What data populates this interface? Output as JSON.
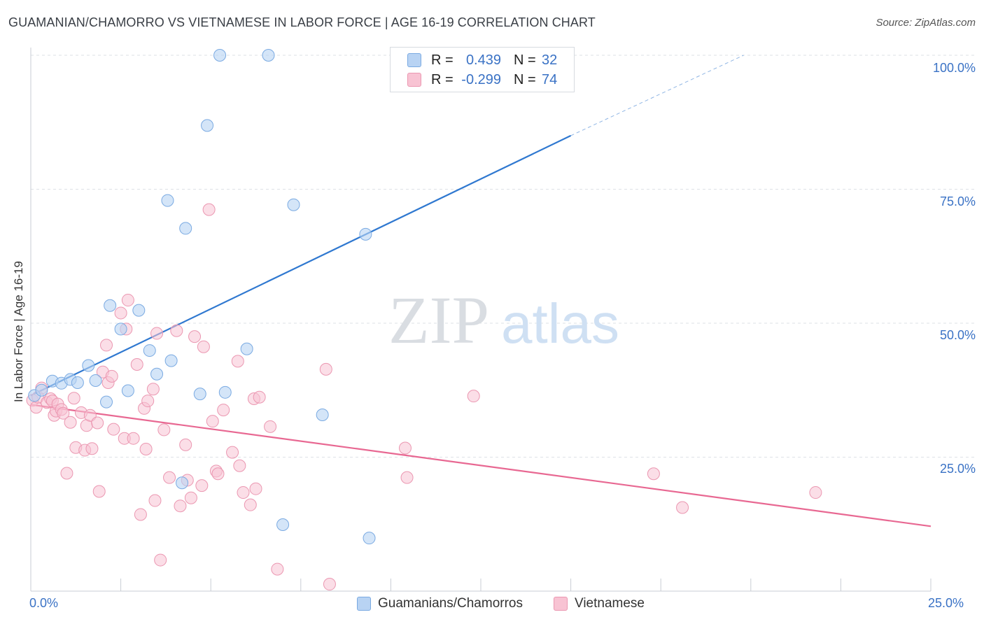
{
  "title": "GUAMANIAN/CHAMORRO VS VIETNAMESE IN LABOR FORCE | AGE 16-19 CORRELATION CHART",
  "source": "Source: ZipAtlas.com",
  "colors": {
    "blue_fill": "#b8d3f3",
    "blue_stroke": "#7aaae2",
    "blue_line": "#2f78d0",
    "pink_fill": "#f8c3d3",
    "pink_stroke": "#eb97b1",
    "pink_line": "#e86892",
    "axis_text": "#3a72c5",
    "grid": "#dde1e6"
  },
  "legend": {
    "rows": [
      {
        "r_label": "R =",
        "r_value": "0.439",
        "n_label": "N =",
        "n_value": "32"
      },
      {
        "r_label": "R =",
        "r_value": "-0.299",
        "n_label": "N =",
        "n_value": "74"
      }
    ]
  },
  "bottom_legend": [
    "Guamanians/Chamorros",
    "Vietnamese"
  ],
  "watermark": {
    "zip": "ZIP",
    "atlas": "atlas"
  },
  "chart_data": {
    "type": "scatter",
    "title": "GUAMANIAN/CHAMORRO VS VIETNAMESE IN LABOR FORCE | AGE 16-19 CORRELATION CHART",
    "xlabel": "",
    "ylabel": "In Labor Force | Age 16-19",
    "xlim": [
      0,
      25
    ],
    "ylim": [
      0,
      100
    ],
    "x_ticks": [
      "0.0%",
      "25.0%"
    ],
    "y_ticks": [
      "100.0%",
      "75.0%",
      "50.0%",
      "25.0%"
    ],
    "y_tick_values": [
      100,
      75,
      50,
      25
    ],
    "grid": true,
    "legend_position": "top-center",
    "series": [
      {
        "name": "Guamanians/Chamorros",
        "color": "#b8d3f3",
        "points": [
          [
            0.1,
            36.5
          ],
          [
            0.3,
            37.5
          ],
          [
            0.6,
            39.2
          ],
          [
            0.85,
            38.8
          ],
          [
            1.1,
            39.5
          ],
          [
            1.3,
            38.9
          ],
          [
            1.6,
            42.1
          ],
          [
            1.8,
            39.3
          ],
          [
            2.1,
            35.3
          ],
          [
            2.2,
            53.3
          ],
          [
            2.5,
            48.9
          ],
          [
            2.7,
            37.4
          ],
          [
            3.0,
            52.4
          ],
          [
            3.3,
            44.9
          ],
          [
            3.5,
            40.5
          ],
          [
            3.8,
            72.9
          ],
          [
            3.9,
            43.0
          ],
          [
            4.3,
            67.7
          ],
          [
            4.7,
            36.8
          ],
          [
            4.9,
            86.9
          ],
          [
            5.25,
            100.0
          ],
          [
            5.4,
            37.1
          ],
          [
            6.0,
            45.2
          ],
          [
            6.6,
            100.0
          ],
          [
            7.3,
            72.1
          ],
          [
            8.1,
            32.9
          ],
          [
            9.3,
            66.6
          ],
          [
            9.4,
            9.9
          ],
          [
            7.0,
            12.4
          ],
          [
            4.2,
            20.2
          ],
          [
            10.9,
            100.0
          ],
          [
            14.9,
            100.0
          ]
        ]
      },
      {
        "name": "Vietnamese",
        "color": "#f8c3d3",
        "points": [
          [
            0.05,
            35.6
          ],
          [
            0.15,
            34.3
          ],
          [
            0.2,
            36.2
          ],
          [
            0.3,
            37.9
          ],
          [
            0.45,
            35.2
          ],
          [
            0.55,
            35.9
          ],
          [
            0.6,
            35.5
          ],
          [
            0.65,
            32.8
          ],
          [
            0.7,
            33.6
          ],
          [
            0.75,
            34.9
          ],
          [
            0.85,
            33.9
          ],
          [
            0.9,
            33.2
          ],
          [
            1.0,
            22.0
          ],
          [
            1.1,
            31.5
          ],
          [
            1.2,
            36.0
          ],
          [
            1.25,
            26.8
          ],
          [
            1.4,
            33.3
          ],
          [
            1.5,
            26.3
          ],
          [
            1.55,
            30.9
          ],
          [
            1.65,
            32.8
          ],
          [
            1.7,
            26.6
          ],
          [
            1.85,
            31.4
          ],
          [
            1.9,
            18.6
          ],
          [
            2.0,
            40.9
          ],
          [
            2.1,
            45.9
          ],
          [
            2.15,
            38.9
          ],
          [
            2.25,
            40.1
          ],
          [
            2.3,
            30.2
          ],
          [
            2.5,
            51.9
          ],
          [
            2.6,
            28.5
          ],
          [
            2.65,
            48.9
          ],
          [
            2.7,
            54.3
          ],
          [
            2.85,
            28.5
          ],
          [
            2.95,
            42.3
          ],
          [
            3.05,
            14.3
          ],
          [
            3.15,
            34.1
          ],
          [
            3.2,
            26.5
          ],
          [
            3.25,
            35.5
          ],
          [
            3.4,
            37.7
          ],
          [
            3.45,
            16.9
          ],
          [
            3.5,
            48.1
          ],
          [
            3.6,
            5.8
          ],
          [
            3.7,
            30.1
          ],
          [
            3.85,
            21.2
          ],
          [
            4.05,
            48.6
          ],
          [
            4.15,
            15.9
          ],
          [
            4.3,
            27.3
          ],
          [
            4.35,
            20.7
          ],
          [
            4.45,
            17.4
          ],
          [
            4.55,
            47.5
          ],
          [
            4.75,
            19.7
          ],
          [
            4.8,
            45.6
          ],
          [
            4.95,
            71.2
          ],
          [
            5.05,
            31.7
          ],
          [
            5.15,
            22.4
          ],
          [
            5.2,
            21.9
          ],
          [
            5.35,
            33.8
          ],
          [
            5.6,
            25.9
          ],
          [
            5.75,
            42.9
          ],
          [
            5.8,
            23.4
          ],
          [
            5.9,
            18.4
          ],
          [
            6.1,
            16.1
          ],
          [
            6.2,
            35.9
          ],
          [
            6.25,
            19.1
          ],
          [
            6.35,
            36.2
          ],
          [
            6.65,
            30.7
          ],
          [
            6.85,
            4.1
          ],
          [
            8.2,
            41.4
          ],
          [
            8.3,
            1.3
          ],
          [
            10.4,
            26.7
          ],
          [
            10.45,
            21.2
          ],
          [
            12.3,
            36.4
          ],
          [
            17.3,
            21.9
          ],
          [
            18.1,
            15.6
          ],
          [
            21.8,
            18.4
          ]
        ]
      }
    ],
    "trend_lines": [
      {
        "name": "Guamanians/Chamorros",
        "x": [
          0,
          15.0
        ],
        "y": [
          36.5,
          85.0
        ],
        "dashed_extension_to": [
          19.8,
          100
        ]
      },
      {
        "name": "Vietnamese",
        "x": [
          0,
          25.0
        ],
        "y": [
          34.8,
          12.1
        ]
      }
    ]
  }
}
